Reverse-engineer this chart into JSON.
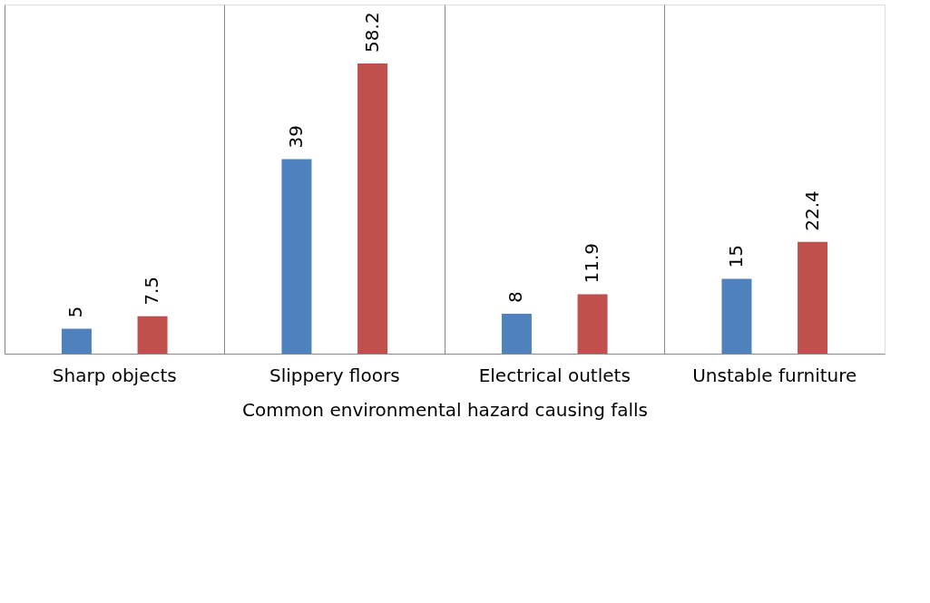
{
  "chart_data": {
    "type": "bar",
    "xlabel": "Common environmental hazard causing falls",
    "categories": [
      "Sharp objects",
      "Slippery floors",
      "Electrical outlets",
      "Unstable furniture"
    ],
    "series": [
      {
        "color": "#4f81bd",
        "values": [
          5,
          39,
          8,
          15
        ]
      },
      {
        "color": "#c0504d",
        "values": [
          7.5,
          58.2,
          11.9,
          22.4
        ]
      }
    ],
    "ylim": [
      0,
      70
    ],
    "data_labels": true,
    "grid": "x",
    "legend": false,
    "tick_labels": "x"
  }
}
